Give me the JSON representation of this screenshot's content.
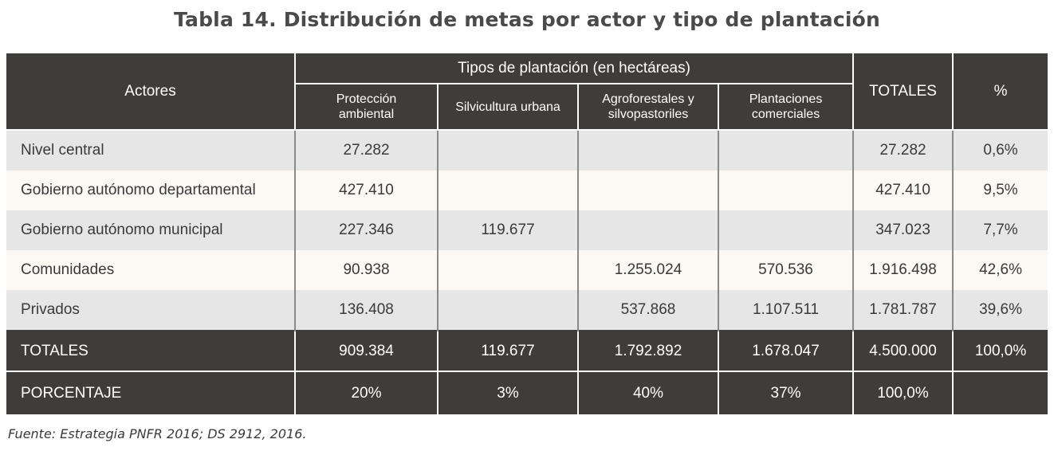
{
  "title": "Tabla 14. Distribución de metas por actor y tipo de plantación",
  "header": {
    "actors": "Actores",
    "group": "Tipos de plantación (en hectáreas)",
    "totals": "TOTALES",
    "percent": "%",
    "subcolumns": [
      {
        "line1": "Protección",
        "line2": "ambiental"
      },
      {
        "line1": "Silvicultura urbana",
        "line2": ""
      },
      {
        "line1": "Agroforestales y",
        "line2": "silvopastoriles"
      },
      {
        "line1": "Plantaciones",
        "line2": "comerciales"
      }
    ]
  },
  "rows": [
    {
      "actor": "Nivel central",
      "c1": "27.282",
      "c2": "",
      "c3": "",
      "c4": "",
      "total": "27.282",
      "pct": "0,6%"
    },
    {
      "actor": "Gobierno autónomo departamental",
      "c1": "427.410",
      "c2": "",
      "c3": "",
      "c4": "",
      "total": "427.410",
      "pct": "9,5%"
    },
    {
      "actor": "Gobierno autónomo municipal",
      "c1": "227.346",
      "c2": "119.677",
      "c3": "",
      "c4": "",
      "total": "347.023",
      "pct": "7,7%"
    },
    {
      "actor": "Comunidades",
      "c1": "90.938",
      "c2": "",
      "c3": "1.255.024",
      "c4": "570.536",
      "total": "1.916.498",
      "pct": "42,6%"
    },
    {
      "actor": "Privados",
      "c1": "136.408",
      "c2": "",
      "c3": "537.868",
      "c4": "1.107.511",
      "total": "1.781.787",
      "pct": "39,6%"
    }
  ],
  "totals_row": {
    "label": "TOTALES",
    "c1": "909.384",
    "c2": "119.677",
    "c3": "1.792.892",
    "c4": "1.678.047",
    "total": "4.500.000",
    "pct": "100,0%"
  },
  "percentage_row": {
    "label": "PORCENTAJE",
    "c1": "20%",
    "c2": "3%",
    "c3": "40%",
    "c4": "37%",
    "total": "100,0%",
    "pct": ""
  },
  "source": "Fuente: Estrategia PNFR 2016; DS 2912, 2016."
}
